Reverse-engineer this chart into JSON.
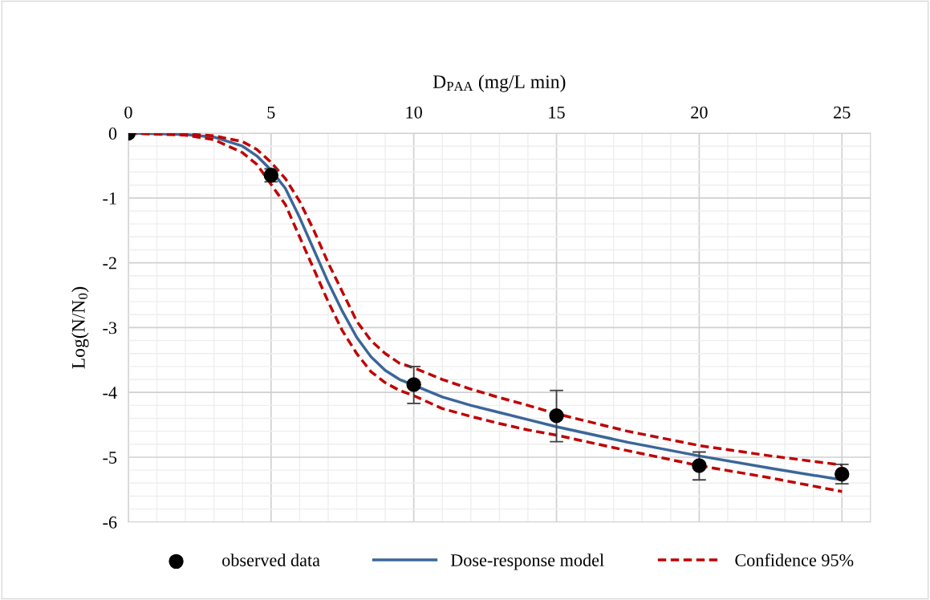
{
  "chart_data": {
    "type": "scatter",
    "xlabel": "D$_{PAA}$ (mg/L min)",
    "ylabel": "Log(N/N$_{0}$)",
    "xlim": [
      0,
      26
    ],
    "xticks": [
      0,
      5,
      10,
      15,
      20,
      25
    ],
    "ylim": [
      -6,
      0
    ],
    "yticks": [
      -6,
      -5,
      -4,
      -3,
      -2,
      -1,
      0
    ],
    "grid": true,
    "legend": "bottom",
    "marker": "circle",
    "series": [
      {
        "name": "observed data",
        "color": "#000000",
        "x": [
          0,
          5,
          10,
          15,
          20,
          25
        ],
        "values": [
          0,
          -0.65,
          -3.88,
          -4.36,
          -5.13,
          -5.26
        ],
        "errors": [
          null,
          [
            -0.75,
            -0.55
          ],
          [
            -4.17,
            -3.6
          ],
          [
            -4.76,
            -3.97
          ],
          [
            -5.35,
            -4.92
          ],
          [
            -5.41,
            -5.11
          ]
        ]
      },
      {
        "name": "Dose-response model",
        "type": "line",
        "color": "#3b6699",
        "line_style": "solid",
        "marker": "none",
        "x": [
          0,
          1,
          2,
          3,
          4,
          4.5,
          5,
          5.5,
          6,
          6.5,
          7,
          7.5,
          8,
          8.5,
          9,
          9.5,
          11,
          12,
          13,
          14,
          15,
          17.5,
          20,
          22.5,
          25
        ],
        "values": [
          0,
          -0.01,
          -0.02,
          -0.06,
          -0.2,
          -0.35,
          -0.57,
          -0.85,
          -1.3,
          -1.8,
          -2.3,
          -2.75,
          -3.15,
          -3.45,
          -3.66,
          -3.8,
          -4.07,
          -4.2,
          -4.31,
          -4.42,
          -4.53,
          -4.77,
          -4.98,
          -5.17,
          -5.35
        ]
      },
      {
        "name": "Confidence 95%",
        "type": "line",
        "color": "#c00000",
        "line_style": "dashed",
        "marker": "none",
        "x": [
          0,
          2,
          3,
          4,
          4.5,
          5,
          5.5,
          6,
          6.5,
          7,
          7.5,
          8,
          8.5,
          9,
          9.5,
          10,
          11,
          12,
          13,
          14,
          15,
          17.5,
          20,
          22.5,
          25
        ],
        "values": [
          0,
          -0.01,
          -0.04,
          -0.13,
          -0.25,
          -0.45,
          -0.7,
          -1.05,
          -1.5,
          -2.0,
          -2.45,
          -2.9,
          -3.2,
          -3.4,
          -3.55,
          -3.62,
          -3.8,
          -3.95,
          -4.08,
          -4.2,
          -4.33,
          -4.6,
          -4.82,
          -4.98,
          -5.12
        ]
      },
      {
        "type": "line",
        "color": "#c00000",
        "line_style": "dashed",
        "marker": "none",
        "x": [
          0,
          2,
          3,
          4,
          4.5,
          5.5,
          6,
          6.5,
          7,
          7.5,
          8,
          8.5,
          9,
          9.5,
          10,
          11,
          12,
          13,
          14,
          15,
          17.5,
          20,
          22.5,
          25
        ],
        "values": [
          0,
          -0.03,
          -0.1,
          -0.3,
          -0.48,
          -1.1,
          -1.6,
          -2.1,
          -2.6,
          -3.05,
          -3.4,
          -3.68,
          -3.85,
          -3.97,
          -4.05,
          -4.25,
          -4.37,
          -4.48,
          -4.58,
          -4.66,
          -4.9,
          -5.13,
          -5.32,
          -5.53
        ]
      }
    ]
  }
}
